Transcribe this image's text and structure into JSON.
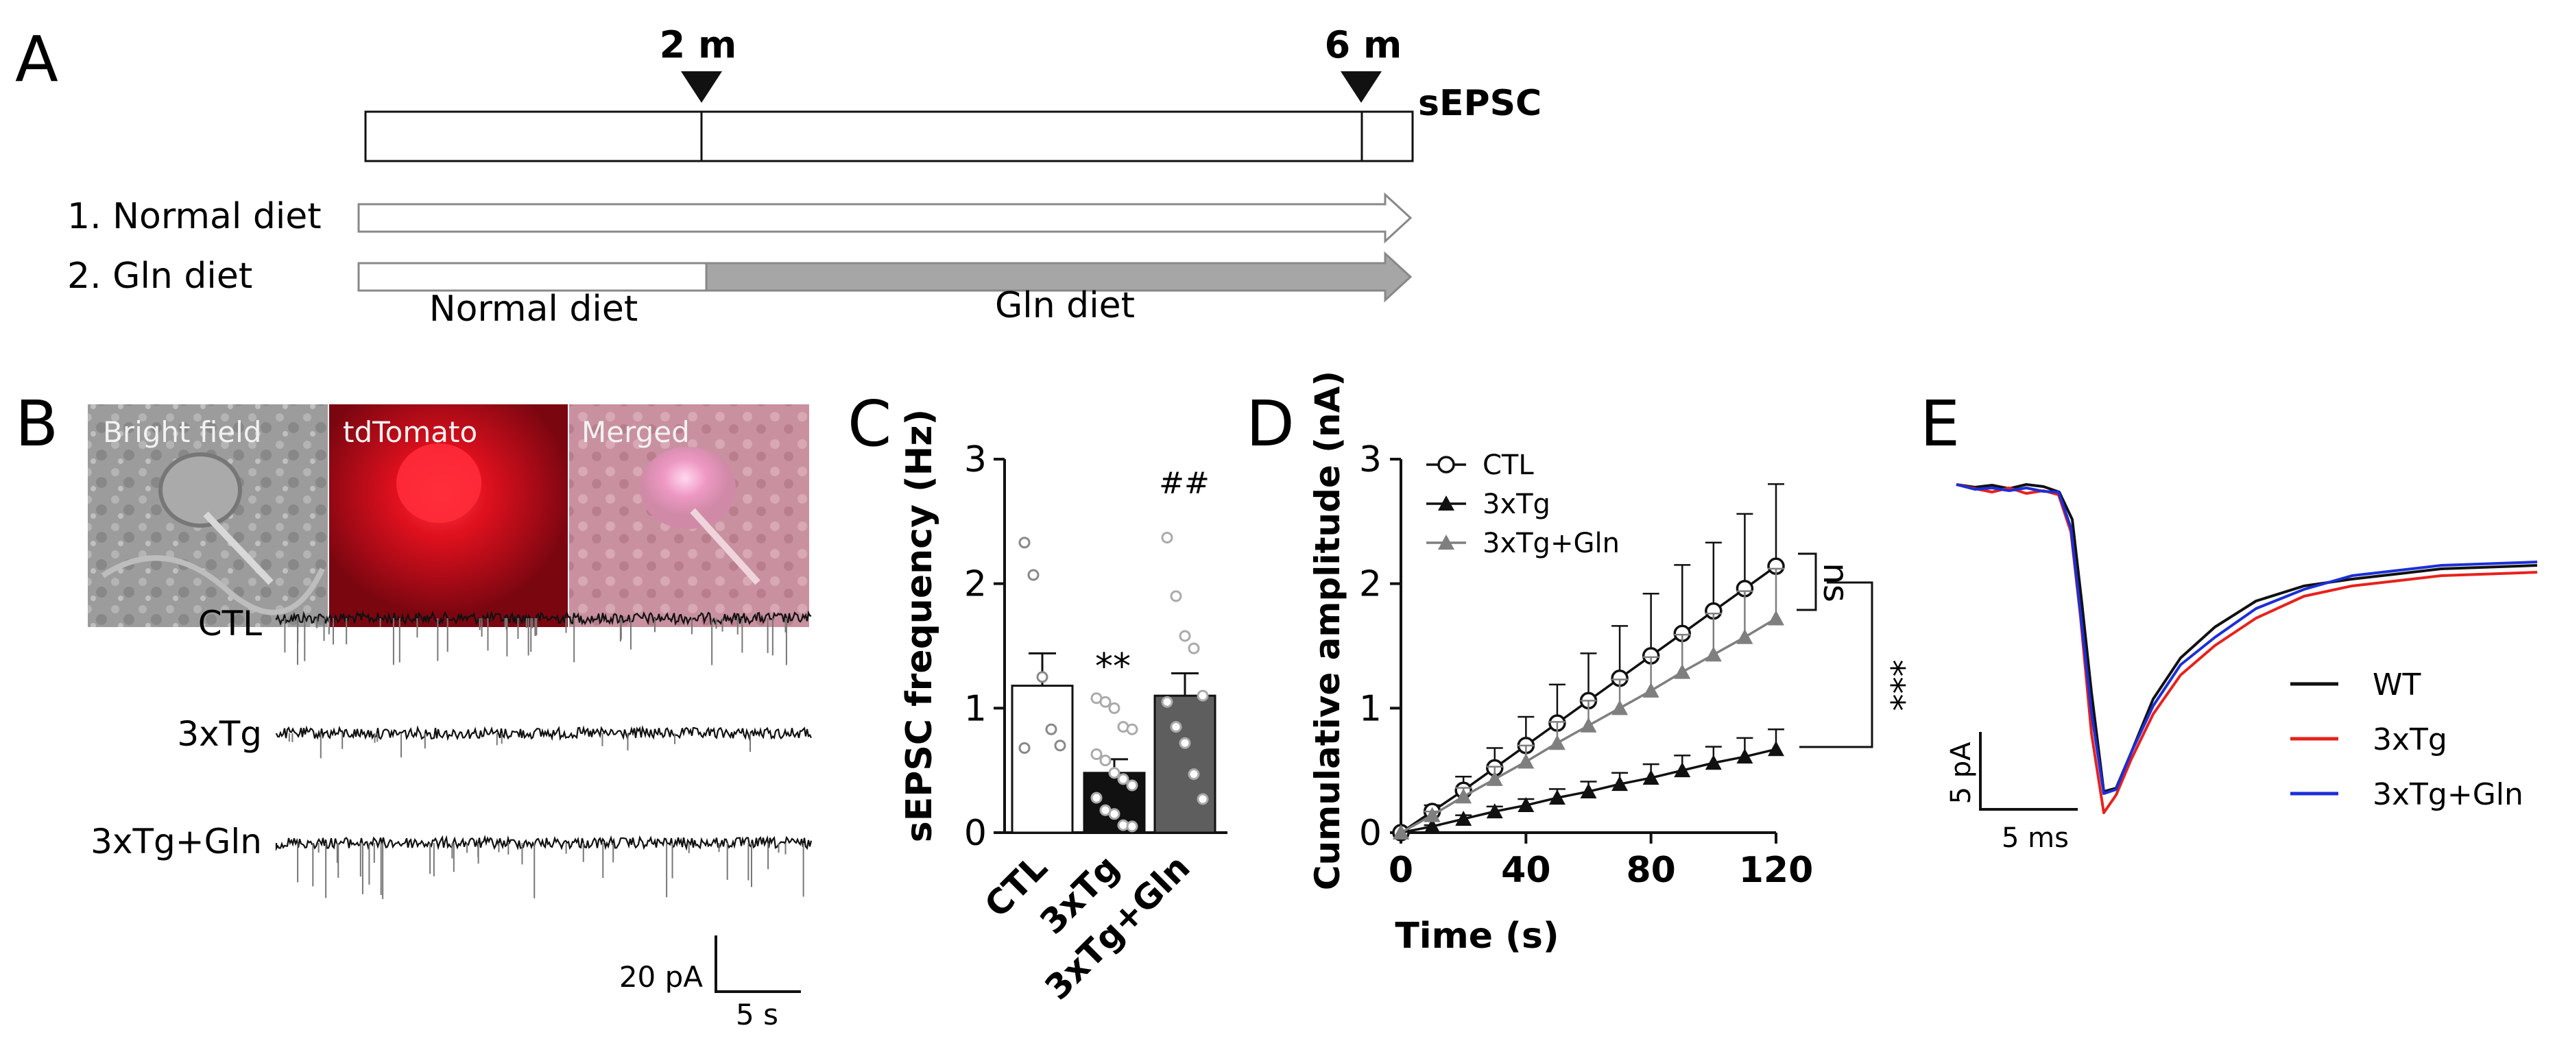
{
  "panels": {
    "A": {
      "letter": "A",
      "timepoint_1": "2 m",
      "timepoint_2": "6 m",
      "endpoint_label": "sEPSC",
      "groups": [
        "1. Normal diet",
        "2. Gln diet"
      ],
      "segment_1": "Normal diet",
      "segment_2": "Gln diet"
    },
    "B": {
      "letter": "B",
      "image_labels": [
        "Bright field",
        "tdTomato",
        "Merged"
      ],
      "trace_labels": [
        "CTL",
        "3xTg",
        "3xTg+Gln"
      ],
      "scale_y": "20 pA",
      "scale_x": "5 s"
    },
    "C": {
      "letter": "C",
      "significance_3xtg": "**",
      "significance_gln": "##"
    },
    "D": {
      "letter": "D",
      "sig_ns": "ns",
      "sig_stars": "***"
    },
    "E": {
      "letter": "E",
      "scale_y": "5 pA",
      "scale_x": "5 ms",
      "legend": [
        {
          "label": "WT",
          "color": "#111111"
        },
        {
          "label": "3xTg",
          "color": "#e8211c"
        },
        {
          "label": "3xTg+Gln",
          "color": "#1b2fd8"
        }
      ]
    }
  },
  "chart_data": [
    {
      "type": "bar",
      "panel": "C",
      "title": "",
      "xlabel": "",
      "ylabel": "sEPSC frequency (Hz)",
      "ylim": [
        0,
        3
      ],
      "yticks": [
        0,
        1,
        2,
        3
      ],
      "categories": [
        "CTL",
        "3xTg",
        "3xTg+Gln"
      ],
      "values": [
        1.18,
        0.48,
        1.1
      ],
      "sem": [
        0.26,
        0.11,
        0.18
      ],
      "colors": [
        "#ffffff",
        "#111111",
        "#5e5e5e"
      ],
      "points": [
        [
          2.33,
          2.07,
          1.25,
          0.83,
          0.7,
          0.68
        ],
        [
          1.08,
          1.05,
          1.0,
          0.85,
          0.83,
          0.63,
          0.58,
          0.48,
          0.43,
          0.38,
          0.28,
          0.18,
          0.15,
          0.06,
          0.05
        ],
        [
          2.37,
          1.9,
          1.58,
          1.48,
          1.1,
          1.05,
          0.85,
          0.72,
          0.47,
          0.27
        ]
      ]
    },
    {
      "type": "line",
      "panel": "D",
      "title": "",
      "xlabel": "Time (s)",
      "ylabel": "Cumulative amplitude (nA)",
      "xlim": [
        0,
        120
      ],
      "ylim": [
        0,
        3
      ],
      "xticks": [
        0,
        40,
        80,
        120
      ],
      "yticks": [
        0,
        1,
        2,
        3
      ],
      "x": [
        0,
        10,
        20,
        30,
        40,
        50,
        60,
        70,
        80,
        90,
        100,
        110,
        120
      ],
      "series": [
        {
          "name": "CTL",
          "marker": "open-circle",
          "color": "#111111",
          "values": [
            0,
            0.17,
            0.34,
            0.52,
            0.7,
            0.88,
            1.06,
            1.24,
            1.42,
            1.6,
            1.78,
            1.96,
            2.14
          ],
          "errors": [
            0,
            0.05,
            0.11,
            0.16,
            0.23,
            0.31,
            0.38,
            0.42,
            0.5,
            0.55,
            0.55,
            0.6,
            0.66
          ]
        },
        {
          "name": "3xTg",
          "marker": "filled-triangle",
          "color": "#111111",
          "values": [
            0,
            0.05,
            0.11,
            0.17,
            0.22,
            0.28,
            0.33,
            0.39,
            0.44,
            0.5,
            0.56,
            0.61,
            0.67
          ],
          "errors": [
            0,
            0.01,
            0.03,
            0.04,
            0.05,
            0.07,
            0.08,
            0.09,
            0.11,
            0.12,
            0.13,
            0.15,
            0.16
          ]
        },
        {
          "name": "3xTg+Gln",
          "marker": "filled-triangle",
          "color": "#7f7f7f",
          "values": [
            0,
            0.14,
            0.29,
            0.43,
            0.57,
            0.72,
            0.86,
            1.0,
            1.14,
            1.29,
            1.43,
            1.57,
            1.72
          ],
          "errors": [
            0,
            0.03,
            0.07,
            0.1,
            0.13,
            0.17,
            0.2,
            0.23,
            0.27,
            0.3,
            0.33,
            0.37,
            0.4
          ]
        }
      ]
    }
  ]
}
